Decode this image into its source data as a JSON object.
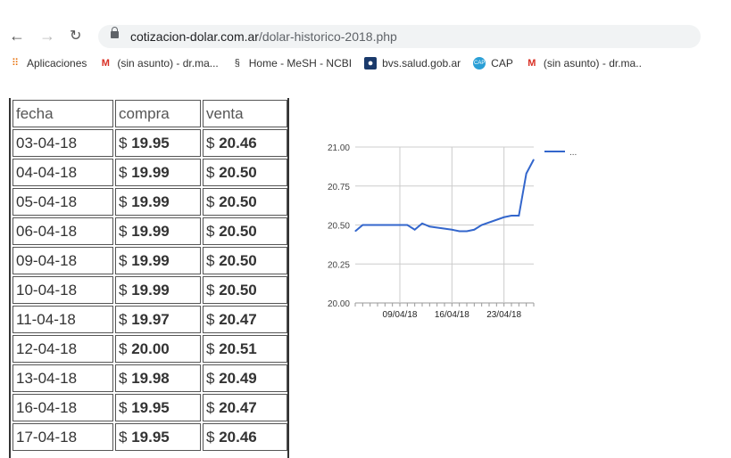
{
  "browser": {
    "url_domain": "cotizacion-dolar.com.ar",
    "url_path": "/dolar-historico-2018.php",
    "bookmarks": [
      {
        "label": "Aplicaciones",
        "icon": "apps-grid-icon"
      },
      {
        "label": "(sin asunto) - dr.ma...",
        "icon": "gmail-icon"
      },
      {
        "label": "Home - MeSH - NCBI",
        "icon": "ncbi-icon"
      },
      {
        "label": "bvs.salud.gob.ar",
        "icon": "bvs-icon"
      },
      {
        "label": "CAP",
        "icon": "cap-icon"
      },
      {
        "label": "(sin asunto) - dr.ma..",
        "icon": "gmail-icon"
      }
    ]
  },
  "table": {
    "headers": [
      "fecha",
      "compra",
      "venta"
    ],
    "currency": "$",
    "rows": [
      [
        "03-04-18",
        "19.95",
        "20.46"
      ],
      [
        "04-04-18",
        "19.99",
        "20.50"
      ],
      [
        "05-04-18",
        "19.99",
        "20.50"
      ],
      [
        "06-04-18",
        "19.99",
        "20.50"
      ],
      [
        "09-04-18",
        "19.99",
        "20.50"
      ],
      [
        "10-04-18",
        "19.99",
        "20.50"
      ],
      [
        "11-04-18",
        "19.97",
        "20.47"
      ],
      [
        "12-04-18",
        "20.00",
        "20.51"
      ],
      [
        "13-04-18",
        "19.98",
        "20.49"
      ],
      [
        "16-04-18",
        "19.95",
        "20.47"
      ],
      [
        "17-04-18",
        "19.95",
        "20.46"
      ]
    ]
  },
  "chart_data": {
    "type": "line",
    "ylim": [
      20.0,
      21.0
    ],
    "yticks": [
      "20.00",
      "20.25",
      "20.50",
      "20.75",
      "21.00"
    ],
    "xticks": [
      "09/04/18",
      "16/04/18",
      "23/04/18"
    ],
    "grid": true,
    "legend": "right",
    "legend_label": "...",
    "color": "#3366cc",
    "x": [
      "03/04/18",
      "04/04/18",
      "05/04/18",
      "06/04/18",
      "09/04/18",
      "10/04/18",
      "11/04/18",
      "12/04/18",
      "13/04/18",
      "16/04/18",
      "17/04/18",
      "18/04/18",
      "19/04/18",
      "20/04/18",
      "23/04/18",
      "24/04/18",
      "25/04/18",
      "26/04/18",
      "27/04/18"
    ],
    "y": [
      20.46,
      20.5,
      20.5,
      20.5,
      20.5,
      20.5,
      20.47,
      20.51,
      20.49,
      20.47,
      20.46,
      20.46,
      20.47,
      20.5,
      20.55,
      20.56,
      20.56,
      20.83,
      20.92
    ]
  }
}
